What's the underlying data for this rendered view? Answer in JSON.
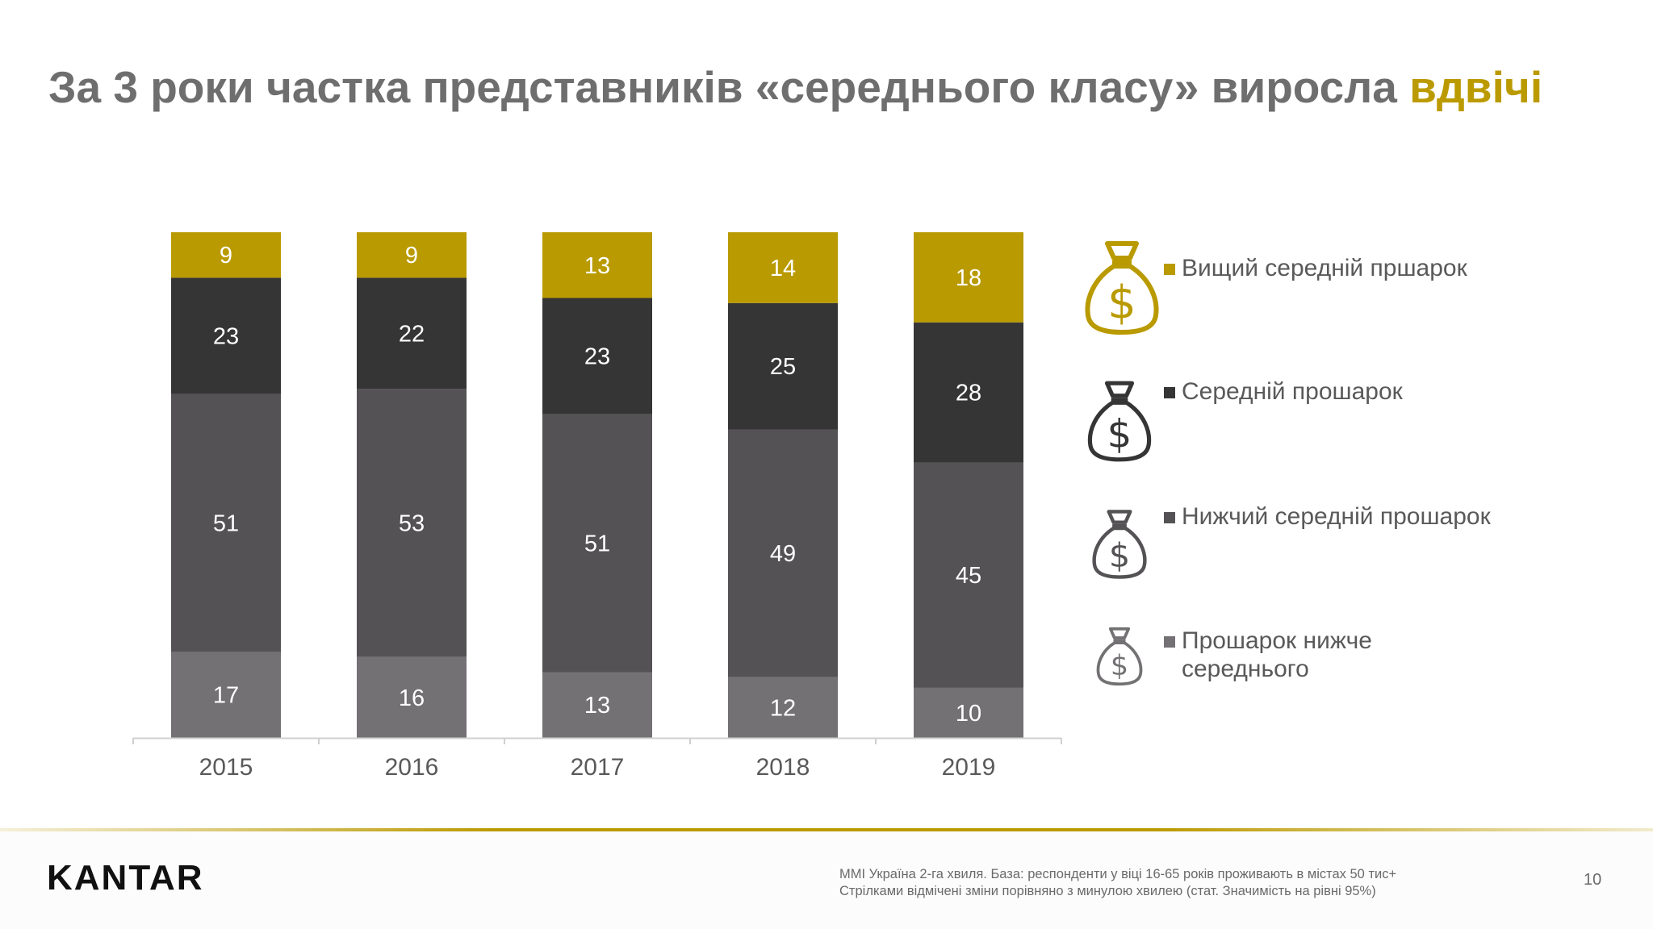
{
  "title": {
    "main": "За 3 роки частка представників «середнього класу» виросла ",
    "accent": "вдвічі"
  },
  "colors": {
    "upper_middle": "#b99a00",
    "middle": "#363536",
    "lower_middle": "#545254",
    "below_middle": "#737173",
    "axis": "#d0d0d0",
    "accent": "#bb9a00"
  },
  "legend": [
    {
      "label": "Вищий середній пршарок",
      "icon": "money-bag-icon-gold",
      "color": "#b99a00"
    },
    {
      "label": "Середній прошарок",
      "icon": "money-bag-icon-dark",
      "color": "#363536"
    },
    {
      "label": "Нижчий середній прошарок",
      "icon": "money-bag-icon-gray",
      "color": "#545254"
    },
    {
      "label": "Прошарок нижче середнього",
      "icon": "money-bag-icon-light",
      "color": "#737173"
    }
  ],
  "chart_data": {
    "type": "bar",
    "stacked": true,
    "categories": [
      "2015",
      "2016",
      "2017",
      "2018",
      "2019"
    ],
    "series": [
      {
        "name": "Прошарок нижче середнього",
        "values": [
          17,
          16,
          13,
          12,
          10
        ]
      },
      {
        "name": "Нижчий середній прошарок",
        "values": [
          51,
          53,
          51,
          49,
          45
        ]
      },
      {
        "name": "Середній прошарок",
        "values": [
          23,
          22,
          23,
          25,
          28
        ]
      },
      {
        "name": "Вищий середній пршарок",
        "values": [
          9,
          9,
          13,
          14,
          18
        ]
      }
    ],
    "ylim": [
      0,
      100
    ],
    "grid": false
  },
  "logo": "KANTAR",
  "footnote": {
    "line1": "MMI Україна 2-га хвиля. База: респонденти у віці 16-65 років проживають в містах 50 тис+",
    "line2": "Стрілками відмічені зміни порівняно з минулою хвилею (стат. Значимість на рівні 95%)"
  },
  "page_number": "10"
}
